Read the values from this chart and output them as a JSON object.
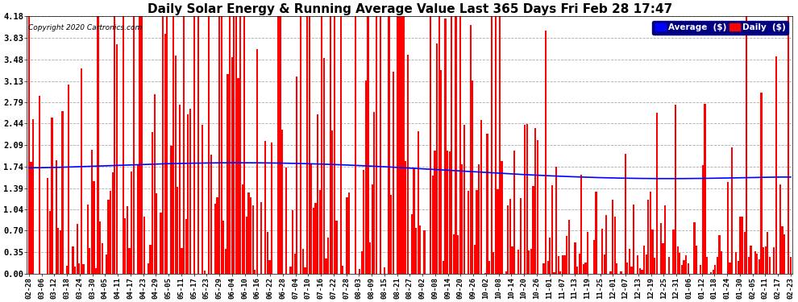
{
  "title": "Daily Solar Energy & Running Average Value Last 365 Days Fri Feb 28 17:47",
  "copyright": "Copyright 2020 Cartronics.com",
  "yticks": [
    0.0,
    0.35,
    0.7,
    1.04,
    1.39,
    1.74,
    2.09,
    2.44,
    2.79,
    3.13,
    3.48,
    3.83,
    4.18
  ],
  "ylim": [
    0.0,
    4.18
  ],
  "bar_color": "#FF0000",
  "avg_color": "#0000FF",
  "background_color": "#FFFFFF",
  "grid_color": "#AAAAAA",
  "title_fontsize": 11,
  "legend_avg_label": "Average  ($)",
  "legend_daily_label": "Daily  ($)",
  "xtick_labels": [
    "02-28",
    "03-06",
    "03-12",
    "03-18",
    "03-24",
    "03-30",
    "04-05",
    "04-11",
    "04-17",
    "04-23",
    "04-29",
    "05-05",
    "05-11",
    "05-17",
    "05-23",
    "05-29",
    "06-04",
    "06-10",
    "06-16",
    "06-22",
    "06-28",
    "07-04",
    "07-10",
    "07-16",
    "07-22",
    "07-28",
    "08-03",
    "08-09",
    "08-15",
    "08-21",
    "08-27",
    "09-02",
    "09-08",
    "09-14",
    "09-20",
    "09-26",
    "10-02",
    "10-08",
    "10-14",
    "10-20",
    "10-26",
    "11-01",
    "11-07",
    "11-13",
    "11-19",
    "11-25",
    "12-01",
    "12-07",
    "12-13",
    "12-19",
    "12-25",
    "12-31",
    "01-06",
    "01-12",
    "01-18",
    "01-24",
    "01-30",
    "02-05",
    "02-11",
    "02-17",
    "02-23"
  ]
}
